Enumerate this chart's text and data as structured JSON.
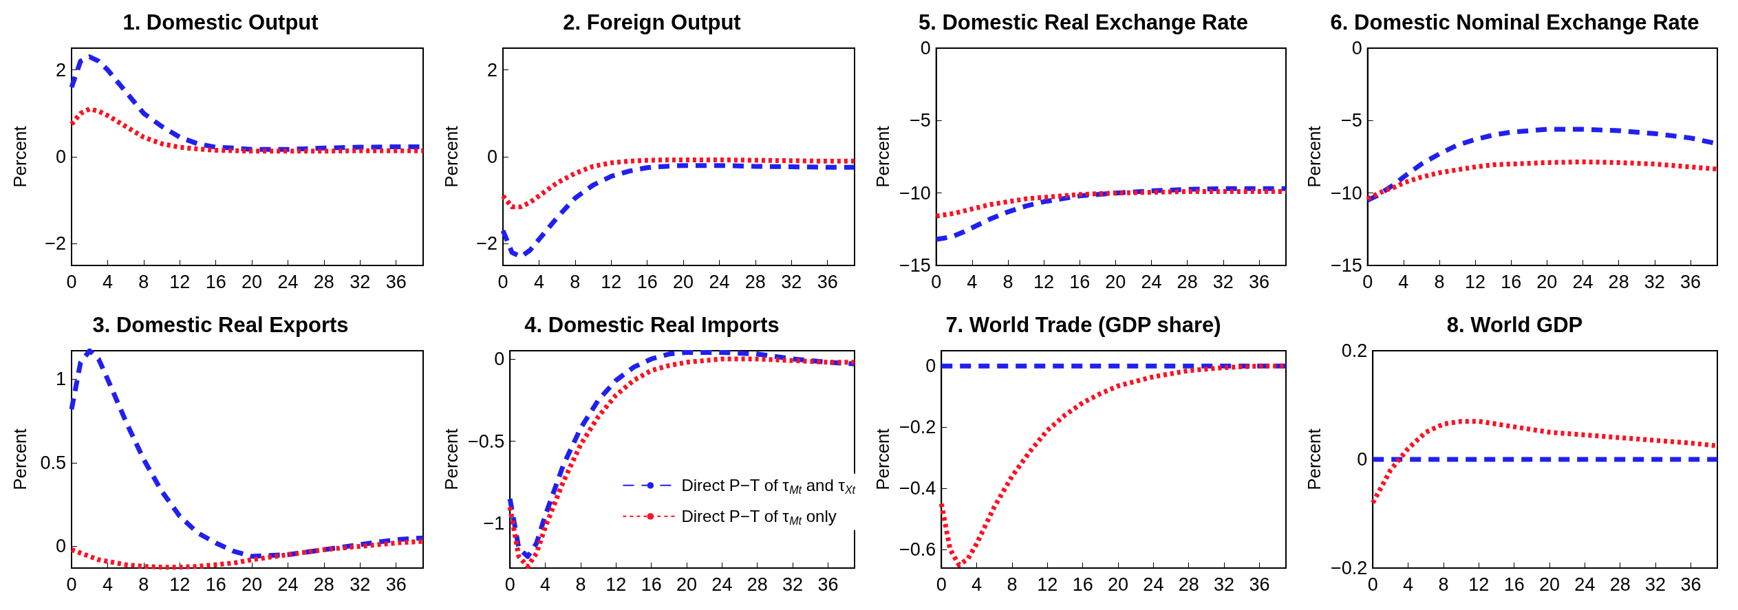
{
  "chart_data": [
    {
      "type": "line",
      "title": "1. Domestic Output",
      "ylabel": "Percent",
      "x": [
        0,
        1,
        2,
        3,
        4,
        6,
        8,
        10,
        12,
        14,
        16,
        18,
        20,
        24,
        28,
        32,
        36,
        39
      ],
      "xlim": [
        0,
        39
      ],
      "xticks": [
        0,
        4,
        8,
        12,
        16,
        20,
        24,
        28,
        32,
        36
      ],
      "ylim": [
        -2.5,
        2.5
      ],
      "yticks": [
        -2,
        0,
        2
      ],
      "series": [
        {
          "color": "#2020f0",
          "line_style": "dashed",
          "values": [
            1.6,
            2.2,
            2.3,
            2.2,
            2.0,
            1.5,
            1.0,
            0.7,
            0.45,
            0.3,
            0.22,
            0.2,
            0.17,
            0.17,
            0.2,
            0.22,
            0.23,
            0.23
          ]
        },
        {
          "color": "#ff1020",
          "line_style": "dotted",
          "values": [
            0.75,
            1.0,
            1.1,
            1.05,
            0.95,
            0.7,
            0.45,
            0.3,
            0.22,
            0.18,
            0.15,
            0.14,
            0.13,
            0.13,
            0.13,
            0.14,
            0.14,
            0.14
          ]
        }
      ]
    },
    {
      "type": "line",
      "title": "2. Foreign Output",
      "ylabel": "Percent",
      "x": [
        0,
        1,
        2,
        3,
        4,
        6,
        8,
        10,
        12,
        14,
        16,
        18,
        20,
        24,
        28,
        32,
        36,
        39
      ],
      "xlim": [
        0,
        39
      ],
      "xticks": [
        0,
        4,
        8,
        12,
        16,
        20,
        24,
        28,
        32,
        36
      ],
      "ylim": [
        -2.5,
        2.5
      ],
      "yticks": [
        -2,
        0,
        2
      ],
      "series": [
        {
          "color": "#2020f0",
          "line_style": "dashed",
          "values": [
            -1.7,
            -2.2,
            -2.3,
            -2.15,
            -1.9,
            -1.4,
            -0.95,
            -0.65,
            -0.45,
            -0.33,
            -0.25,
            -0.22,
            -0.2,
            -0.2,
            -0.22,
            -0.23,
            -0.24,
            -0.24
          ]
        },
        {
          "color": "#ff1020",
          "line_style": "dotted",
          "values": [
            -0.9,
            -1.15,
            -1.15,
            -1.05,
            -0.9,
            -0.6,
            -0.38,
            -0.22,
            -0.14,
            -0.1,
            -0.08,
            -0.07,
            -0.07,
            -0.07,
            -0.08,
            -0.09,
            -0.1,
            -0.1
          ]
        }
      ]
    },
    {
      "type": "line",
      "title": "5. Domestic Real Exchange Rate",
      "ylabel": "Percent",
      "x": [
        0,
        1,
        2,
        3,
        4,
        6,
        8,
        10,
        12,
        14,
        16,
        18,
        20,
        24,
        28,
        32,
        36,
        39
      ],
      "xlim": [
        0,
        39
      ],
      "xticks": [
        0,
        4,
        8,
        12,
        16,
        20,
        24,
        28,
        32,
        36
      ],
      "ylim": [
        -15,
        0
      ],
      "yticks": [
        -15,
        -10,
        -5,
        0
      ],
      "series": [
        {
          "color": "#2020f0",
          "line_style": "dashed",
          "values": [
            -13.2,
            -13.1,
            -12.95,
            -12.7,
            -12.4,
            -11.8,
            -11.3,
            -10.9,
            -10.6,
            -10.4,
            -10.2,
            -10.1,
            -10,
            -9.85,
            -9.75,
            -9.7,
            -9.7,
            -9.7
          ]
        },
        {
          "color": "#ff1020",
          "line_style": "dotted",
          "values": [
            -11.6,
            -11.5,
            -11.4,
            -11.25,
            -11.1,
            -10.8,
            -10.6,
            -10.4,
            -10.3,
            -10.2,
            -10.1,
            -10.05,
            -10,
            -9.95,
            -9.9,
            -9.9,
            -9.9,
            -9.9
          ]
        }
      ]
    },
    {
      "type": "line",
      "title": "6. Domestic Nominal Exchange Rate",
      "ylabel": "Percent",
      "x": [
        0,
        1,
        2,
        3,
        4,
        6,
        8,
        10,
        12,
        14,
        16,
        18,
        20,
        24,
        28,
        32,
        36,
        39
      ],
      "xlim": [
        0,
        39
      ],
      "xticks": [
        0,
        4,
        8,
        12,
        16,
        20,
        24,
        28,
        32,
        36
      ],
      "ylim": [
        -15,
        0
      ],
      "yticks": [
        -15,
        -10,
        -5,
        0
      ],
      "series": [
        {
          "color": "#2020f0",
          "line_style": "dashed",
          "values": [
            -10.5,
            -10.2,
            -9.8,
            -9.4,
            -8.9,
            -8.0,
            -7.3,
            -6.7,
            -6.3,
            -6.0,
            -5.8,
            -5.7,
            -5.6,
            -5.6,
            -5.7,
            -5.9,
            -6.2,
            -6.6
          ]
        },
        {
          "color": "#ff1020",
          "line_style": "dotted",
          "values": [
            -10.4,
            -10.1,
            -9.8,
            -9.6,
            -9.3,
            -8.9,
            -8.6,
            -8.4,
            -8.2,
            -8.05,
            -8.0,
            -7.95,
            -7.9,
            -7.85,
            -7.9,
            -8.0,
            -8.2,
            -8.35
          ]
        }
      ]
    },
    {
      "type": "line",
      "title": "3. Domestic Real Exports",
      "ylabel": "Percent",
      "x": [
        0,
        1,
        2,
        3,
        4,
        6,
        8,
        10,
        12,
        14,
        16,
        18,
        20,
        24,
        28,
        32,
        36,
        39
      ],
      "xlim": [
        0,
        39
      ],
      "xticks": [
        0,
        4,
        8,
        12,
        16,
        20,
        24,
        28,
        32,
        36
      ],
      "ylim": [
        -0.13,
        1.17
      ],
      "yticks": [
        0,
        0.5,
        1
      ],
      "series": [
        {
          "color": "#2020f0",
          "line_style": "dashed",
          "values": [
            0.82,
            1.1,
            1.17,
            1.12,
            1.0,
            0.75,
            0.52,
            0.33,
            0.18,
            0.08,
            0.02,
            -0.03,
            -0.06,
            -0.05,
            -0.02,
            0.01,
            0.04,
            0.05
          ]
        },
        {
          "color": "#ff1020",
          "line_style": "dotted",
          "values": [
            -0.02,
            -0.04,
            -0.06,
            -0.08,
            -0.09,
            -0.11,
            -0.12,
            -0.125,
            -0.125,
            -0.12,
            -0.11,
            -0.1,
            -0.08,
            -0.05,
            -0.02,
            0.0,
            0.02,
            0.03
          ]
        }
      ]
    },
    {
      "type": "line",
      "title": "4. Domestic Real Imports",
      "ylabel": "Percent",
      "legend": "right",
      "x": [
        0,
        1,
        2,
        3,
        4,
        6,
        8,
        10,
        12,
        14,
        16,
        18,
        20,
        24,
        28,
        32,
        36,
        39
      ],
      "xlim": [
        0,
        39
      ],
      "xticks": [
        0,
        4,
        8,
        12,
        16,
        20,
        24,
        28,
        32,
        36
      ],
      "ylim": [
        -1.27,
        0.05
      ],
      "yticks": [
        -1,
        -0.5,
        0
      ],
      "series": [
        {
          "name": "Direct P−T of τ$_{Mt}$ and τ$_{Xt}$",
          "color": "#2020f0",
          "line_style": "dashed",
          "values": [
            -0.85,
            -1.15,
            -1.2,
            -1.12,
            -0.95,
            -0.65,
            -0.42,
            -0.25,
            -0.13,
            -0.05,
            0.0,
            0.03,
            0.04,
            0.04,
            0.03,
            0.0,
            -0.02,
            -0.03
          ]
        },
        {
          "name": "Direct P−T of τ$_{Mt}$ only",
          "color": "#ff1020",
          "line_style": "dotted",
          "values": [
            -0.9,
            -1.2,
            -1.26,
            -1.18,
            -1.02,
            -0.75,
            -0.52,
            -0.35,
            -0.22,
            -0.13,
            -0.07,
            -0.04,
            -0.02,
            0.0,
            0.0,
            -0.01,
            -0.02,
            -0.02
          ]
        }
      ]
    },
    {
      "type": "line",
      "title": "7. World Trade (GDP share)",
      "ylabel": "Percent",
      "x": [
        0,
        1,
        2,
        3,
        4,
        6,
        8,
        10,
        12,
        14,
        16,
        18,
        20,
        24,
        28,
        32,
        36,
        39
      ],
      "xlim": [
        0,
        39
      ],
      "xticks": [
        0,
        4,
        8,
        12,
        16,
        20,
        24,
        28,
        32,
        36
      ],
      "ylim": [
        -0.66,
        0.05
      ],
      "yticks": [
        -0.6,
        -0.4,
        -0.2,
        0
      ],
      "series": [
        {
          "color": "#2020f0",
          "line_style": "dashed",
          "values": [
            0,
            0,
            0,
            0,
            0,
            0,
            0,
            0,
            0,
            0,
            0,
            0,
            0,
            0,
            0,
            0,
            0,
            0
          ]
        },
        {
          "color": "#ff1020",
          "line_style": "dotted",
          "values": [
            -0.45,
            -0.6,
            -0.65,
            -0.63,
            -0.58,
            -0.46,
            -0.36,
            -0.28,
            -0.21,
            -0.16,
            -0.12,
            -0.09,
            -0.065,
            -0.035,
            -0.015,
            -0.005,
            0.0,
            0.0
          ]
        }
      ]
    },
    {
      "type": "line",
      "title": "8. World GDP",
      "ylabel": "Percent",
      "x": [
        0,
        1,
        2,
        3,
        4,
        6,
        8,
        10,
        12,
        14,
        16,
        18,
        20,
        24,
        28,
        32,
        36,
        39
      ],
      "xlim": [
        0,
        39
      ],
      "xticks": [
        0,
        4,
        8,
        12,
        16,
        20,
        24,
        28,
        32,
        36
      ],
      "ylim": [
        -0.2,
        0.2
      ],
      "yticks": [
        -0.2,
        0,
        0.2
      ],
      "series": [
        {
          "color": "#2020f0",
          "line_style": "dashed",
          "values": [
            0,
            0,
            0,
            0,
            0,
            0,
            0,
            0,
            0,
            0,
            0,
            0,
            0,
            0,
            0,
            0,
            0,
            0
          ]
        },
        {
          "color": "#ff1020",
          "line_style": "dotted",
          "values": [
            -0.08,
            -0.05,
            -0.02,
            0.0,
            0.02,
            0.05,
            0.065,
            0.07,
            0.07,
            0.065,
            0.06,
            0.055,
            0.05,
            0.045,
            0.04,
            0.035,
            0.03,
            0.025
          ]
        }
      ]
    }
  ]
}
